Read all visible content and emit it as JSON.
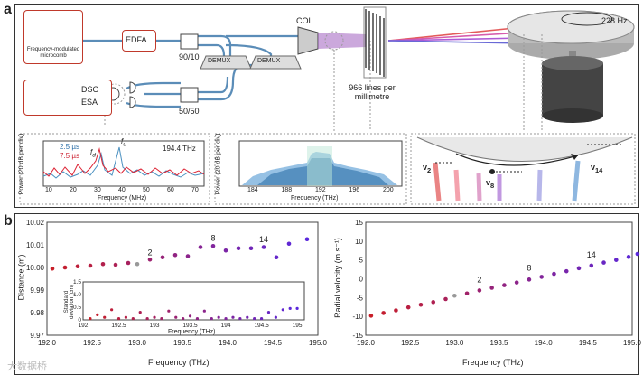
{
  "panel_a": {
    "letter": "a",
    "comb_label": "Frequency-modulated microcomb",
    "edfa": "EDFA",
    "splitter1": "90/10",
    "col": "COL",
    "demux": "DEMUX",
    "dso": "DSO",
    "esa": "ESA",
    "splitter2": "50/50",
    "grating_label": "966 lines per millimetre",
    "rotation": "228 Hz",
    "inset1": {
      "legend": [
        "2.5 µs",
        "7.5 µs"
      ],
      "freq_label": "194.4 THz",
      "ylabel": "Power (20 dB per div)",
      "xlabel": "Frequency (MHz)",
      "xticks": [
        "10",
        "20",
        "30",
        "40",
        "50",
        "60",
        "70"
      ],
      "fd": "f",
      "fd_sub": "d",
      "fu": "f",
      "fu_sub": "u"
    },
    "inset2": {
      "ylabel": "Power (20 dB per div)",
      "xlabel": "Frequency (THz)",
      "xticks": [
        "184",
        "188",
        "192",
        "196",
        "200"
      ]
    },
    "inset3": {
      "v2": "v",
      "v2_sub": "2",
      "v8": "v",
      "v8_sub": "8",
      "v14": "v",
      "v14_sub": "14"
    }
  },
  "panel_b": {
    "letter": "b",
    "watermark": "大数据桥"
  },
  "chart_data": [
    {
      "type": "scatter",
      "xlabel": "Frequency (THz)",
      "ylabel": "Distance (m)",
      "xlim": [
        192.0,
        195.0
      ],
      "ylim": [
        9.97,
        10.02
      ],
      "xticks": [
        "192.0",
        "192.5",
        "193.0",
        "193.5",
        "194.0",
        "194.5",
        "195.0"
      ],
      "yticks": [
        "9.97",
        "9.98",
        "9.99",
        "10.00",
        "10.01",
        "10.02"
      ],
      "annotations": [
        "2",
        "8",
        "14"
      ],
      "x": [
        192.06,
        192.2,
        192.34,
        192.48,
        192.62,
        192.76,
        192.9,
        193.0,
        193.14,
        193.28,
        193.42,
        193.56,
        193.7,
        193.84,
        193.98,
        194.12,
        194.26,
        194.4,
        194.54,
        194.68,
        194.88
      ],
      "y": [
        9.9995,
        10.0,
        10.0005,
        10.0008,
        10.0015,
        10.0012,
        10.002,
        10.0015,
        10.0035,
        10.0045,
        10.0055,
        10.005,
        10.009,
        10.0095,
        10.0075,
        10.0085,
        10.0085,
        10.009,
        10.0045,
        10.0105,
        10.0125
      ],
      "inset": {
        "xlabel": "Frequency (THz)",
        "ylabel": "Standard deviation (cm)",
        "xticks": [
          "192",
          "192.5",
          "193",
          "193.5",
          "194",
          "194.5",
          "195"
        ],
        "yticks": [
          "0",
          "0.5",
          "1.0",
          "1.5"
        ],
        "ylim": [
          0,
          1.5
        ],
        "x": [
          192.1,
          192.2,
          192.3,
          192.4,
          192.5,
          192.6,
          192.7,
          192.8,
          192.9,
          193.0,
          193.1,
          193.2,
          193.3,
          193.4,
          193.5,
          193.6,
          193.7,
          193.8,
          193.9,
          194.0,
          194.1,
          194.2,
          194.3,
          194.4,
          194.5,
          194.6,
          194.7,
          194.8,
          194.9,
          195.0
        ],
        "y": [
          0.05,
          0.2,
          0.1,
          0.4,
          0.05,
          0.1,
          0.05,
          0.3,
          0.05,
          0.1,
          0.05,
          0.35,
          0.1,
          0.05,
          0.15,
          0.05,
          0.35,
          0.05,
          0.1,
          0.05,
          0.1,
          0.05,
          0.1,
          0.05,
          0.05,
          0.3,
          0.1,
          0.4,
          0.45,
          0.45
        ]
      }
    },
    {
      "type": "scatter",
      "xlabel": "Frequency (THz)",
      "ylabel": "Radial velocity (m s⁻¹)",
      "xlim": [
        192.0,
        195.0
      ],
      "ylim": [
        -15,
        15
      ],
      "xticks": [
        "192.0",
        "192.5",
        "193.0",
        "193.5",
        "194.0",
        "194.5",
        "195.0"
      ],
      "yticks": [
        "-15",
        "-10",
        "-5",
        "0",
        "5",
        "10",
        "15"
      ],
      "annotations": [
        "2",
        "8",
        "14"
      ],
      "x": [
        192.06,
        192.2,
        192.34,
        192.48,
        192.62,
        192.76,
        192.9,
        193.0,
        193.14,
        193.28,
        193.42,
        193.56,
        193.7,
        193.84,
        193.98,
        194.12,
        194.26,
        194.4,
        194.54,
        194.68,
        194.82,
        194.96,
        195.06
      ],
      "y": [
        -9.8,
        -9.1,
        -8.4,
        -7.6,
        -6.9,
        -6.2,
        -5.4,
        -4.5,
        -3.9,
        -3.1,
        -2.4,
        -1.7,
        -1.0,
        -0.2,
        0.5,
        1.3,
        2.0,
        2.8,
        3.5,
        4.3,
        5.0,
        5.8,
        6.6
      ]
    }
  ]
}
